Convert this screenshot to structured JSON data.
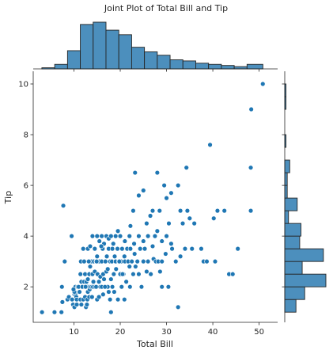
{
  "chart_data": {
    "type": "scatter",
    "title": "Joint Plot of Total Bill and Tip",
    "xlabel": "Total Bill",
    "ylabel": "Tip",
    "xlim": [
      1.2,
      54.0
    ],
    "ylim": [
      0.6,
      10.5
    ],
    "xticks": [
      "10",
      "20",
      "30",
      "40",
      "50"
    ],
    "yticks": [
      "2",
      "4",
      "6",
      "8",
      "10"
    ],
    "grid": false,
    "marker_color": "#1f77b4",
    "bar_color": "#4c8fbd",
    "points": [
      [
        3.1,
        1.0
      ],
      [
        5.8,
        1.0
      ],
      [
        7.3,
        1.0
      ],
      [
        7.5,
        1.4
      ],
      [
        8.6,
        1.5
      ],
      [
        8.9,
        1.6
      ],
      [
        9.6,
        1.5
      ],
      [
        9.8,
        1.3
      ],
      [
        10.1,
        1.7
      ],
      [
        10.3,
        1.7
      ],
      [
        10.5,
        1.6
      ],
      [
        10.6,
        1.5
      ],
      [
        10.3,
        2.0
      ],
      [
        10.1,
        1.8
      ],
      [
        9.9,
        1.9
      ],
      [
        9.6,
        1.5
      ],
      [
        10.1,
        1.2
      ],
      [
        10.6,
        1.3
      ],
      [
        11.2,
        1.8
      ],
      [
        11.4,
        1.5
      ],
      [
        11.6,
        1.3
      ],
      [
        12.0,
        1.5
      ],
      [
        12.4,
        1.6
      ],
      [
        12.6,
        1.2
      ],
      [
        12.8,
        1.3
      ],
      [
        12.9,
        1.5
      ],
      [
        13.0,
        1.8
      ],
      [
        13.0,
        2.0
      ],
      [
        13.3,
        1.6
      ],
      [
        13.4,
        1.9
      ],
      [
        13.5,
        2.0
      ],
      [
        13.8,
        2.0
      ],
      [
        13.9,
        1.6
      ],
      [
        14.1,
        2.0
      ],
      [
        14.5,
        2.0
      ],
      [
        14.8,
        2.0
      ],
      [
        15.0,
        1.5
      ],
      [
        15.4,
        1.6
      ],
      [
        15.7,
        2.0
      ],
      [
        16.0,
        2.0
      ],
      [
        16.3,
        1.7
      ],
      [
        16.9,
        2.0
      ],
      [
        17.3,
        2.0
      ],
      [
        17.5,
        1.8
      ],
      [
        17.8,
        1.5
      ],
      [
        18.3,
        2.0
      ],
      [
        18.7,
        1.8
      ],
      [
        19.5,
        1.5
      ],
      [
        20.3,
        2.0
      ],
      [
        20.9,
        1.5
      ],
      [
        22.1,
        2.0
      ],
      [
        10.8,
        2.0
      ],
      [
        11.0,
        2.0
      ],
      [
        11.4,
        2.5
      ],
      [
        11.6,
        2.2
      ],
      [
        11.8,
        2.0
      ],
      [
        12.2,
        2.2
      ],
      [
        12.4,
        2.5
      ],
      [
        12.5,
        2.0
      ],
      [
        12.7,
        2.2
      ],
      [
        13.0,
        2.3
      ],
      [
        13.3,
        2.5
      ],
      [
        13.5,
        2.8
      ],
      [
        13.8,
        3.0
      ],
      [
        14.0,
        2.5
      ],
      [
        14.2,
        2.2
      ],
      [
        14.3,
        3.0
      ],
      [
        14.5,
        2.6
      ],
      [
        14.8,
        3.0
      ],
      [
        15.0,
        3.2
      ],
      [
        15.1,
        2.5
      ],
      [
        15.4,
        2.2
      ],
      [
        15.5,
        3.0
      ],
      [
        15.7,
        2.4
      ],
      [
        16.0,
        3.0
      ],
      [
        16.2,
        3.5
      ],
      [
        16.3,
        2.5
      ],
      [
        16.5,
        2.3
      ],
      [
        16.8,
        3.0
      ],
      [
        17.0,
        2.6
      ],
      [
        17.1,
        3.2
      ],
      [
        17.3,
        2.7
      ],
      [
        17.5,
        3.5
      ],
      [
        17.8,
        3.0
      ],
      [
        18.0,
        2.3
      ],
      [
        18.2,
        3.0
      ],
      [
        18.3,
        3.5
      ],
      [
        18.6,
        2.5
      ],
      [
        18.8,
        3.2
      ],
      [
        19.0,
        3.0
      ],
      [
        19.1,
        2.7
      ],
      [
        19.4,
        3.5
      ],
      [
        19.7,
        3.0
      ],
      [
        20.0,
        2.5
      ],
      [
        20.2,
        3.0
      ],
      [
        20.4,
        3.5
      ],
      [
        20.7,
        2.5
      ],
      [
        20.9,
        3.2
      ],
      [
        21.0,
        3.0
      ],
      [
        21.3,
        2.2
      ],
      [
        21.5,
        3.5
      ],
      [
        21.7,
        3.0
      ],
      [
        22.0,
        2.8
      ],
      [
        22.2,
        3.5
      ],
      [
        22.5,
        3.0
      ],
      [
        22.8,
        2.5
      ],
      [
        23.1,
        3.3
      ],
      [
        23.3,
        2.8
      ],
      [
        23.7,
        3.0
      ],
      [
        24.0,
        2.5
      ],
      [
        24.3,
        3.5
      ],
      [
        24.6,
        2.0
      ],
      [
        25.0,
        3.0
      ],
      [
        25.3,
        3.5
      ],
      [
        25.7,
        2.6
      ],
      [
        26.0,
        3.0
      ],
      [
        26.6,
        2.5
      ],
      [
        27.2,
        3.1
      ],
      [
        27.7,
        3.0
      ],
      [
        28.2,
        3.0
      ],
      [
        28.6,
        2.6
      ],
      [
        29.0,
        3.0
      ],
      [
        29.8,
        3.3
      ],
      [
        30.4,
        2.0
      ],
      [
        31.2,
        3.5
      ],
      [
        32.0,
        3.0
      ],
      [
        33.0,
        3.2
      ],
      [
        34.0,
        3.5
      ],
      [
        13.0,
        3.5
      ],
      [
        13.5,
        3.6
      ],
      [
        14.0,
        4.0
      ],
      [
        14.5,
        3.5
      ],
      [
        15.0,
        4.0
      ],
      [
        15.5,
        3.8
      ],
      [
        16.0,
        4.0
      ],
      [
        16.5,
        3.7
      ],
      [
        17.0,
        4.0
      ],
      [
        17.5,
        3.9
      ],
      [
        18.0,
        4.0
      ],
      [
        18.5,
        3.7
      ],
      [
        19.0,
        4.0
      ],
      [
        19.5,
        4.2
      ],
      [
        20.0,
        4.0
      ],
      [
        21.0,
        3.8
      ],
      [
        22.0,
        4.0
      ],
      [
        23.0,
        3.7
      ],
      [
        24.0,
        4.0
      ],
      [
        25.0,
        3.8
      ],
      [
        26.0,
        4.0
      ],
      [
        27.0,
        3.6
      ],
      [
        27.5,
        4.0
      ],
      [
        28.0,
        4.2
      ],
      [
        29.0,
        3.8
      ],
      [
        30.0,
        4.0
      ],
      [
        31.0,
        3.7
      ],
      [
        8.0,
        3.0
      ],
      [
        9.5,
        4.0
      ],
      [
        7.4,
        2.0
      ],
      [
        7.7,
        5.2
      ],
      [
        11.5,
        3.0
      ],
      [
        12.0,
        3.5
      ],
      [
        12.2,
        3.0
      ],
      [
        13.2,
        3.0
      ],
      [
        14.9,
        3.0
      ],
      [
        15.9,
        3.6
      ],
      [
        19.8,
        3.0
      ],
      [
        16.7,
        2.0
      ],
      [
        18.0,
        1.0
      ],
      [
        20.5,
        2.5
      ],
      [
        22.2,
        4.4
      ],
      [
        22.8,
        5.0
      ],
      [
        23.2,
        6.5
      ],
      [
        24.0,
        5.6
      ],
      [
        25.0,
        5.8
      ],
      [
        25.7,
        4.5
      ],
      [
        26.5,
        4.8
      ],
      [
        27.0,
        5.0
      ],
      [
        28.0,
        6.5
      ],
      [
        28.5,
        5.0
      ],
      [
        29.5,
        6.0
      ],
      [
        30.0,
        5.5
      ],
      [
        30.5,
        4.5
      ],
      [
        31.0,
        5.7
      ],
      [
        32.5,
        6.0
      ],
      [
        33.0,
        5.0
      ],
      [
        33.5,
        4.5
      ],
      [
        34.3,
        6.7
      ],
      [
        34.5,
        5.0
      ],
      [
        35.0,
        4.7
      ],
      [
        35.5,
        3.5
      ],
      [
        36.0,
        4.5
      ],
      [
        37.5,
        3.5
      ],
      [
        38.0,
        3.0
      ],
      [
        38.7,
        3.0
      ],
      [
        39.4,
        7.6
      ],
      [
        40.2,
        4.7
      ],
      [
        40.5,
        3.0
      ],
      [
        41.0,
        5.0
      ],
      [
        42.5,
        5.0
      ],
      [
        43.5,
        2.5
      ],
      [
        44.3,
        2.5
      ],
      [
        45.4,
        3.5
      ],
      [
        48.2,
        5.0
      ],
      [
        48.2,
        6.7
      ],
      [
        48.3,
        9.0
      ],
      [
        50.8,
        10.0
      ],
      [
        32.5,
        1.2
      ],
      [
        29.0,
        2.0
      ]
    ],
    "x_hist": [
      {
        "start": 3.07,
        "end": 5.84,
        "count": 1
      },
      {
        "start": 5.84,
        "end": 8.61,
        "count": 4
      },
      {
        "start": 8.61,
        "end": 11.38,
        "count": 16
      },
      {
        "start": 11.38,
        "end": 14.15,
        "count": 39
      },
      {
        "start": 14.15,
        "end": 16.92,
        "count": 41
      },
      {
        "start": 16.92,
        "end": 19.69,
        "count": 34
      },
      {
        "start": 19.69,
        "end": 22.46,
        "count": 30
      },
      {
        "start": 22.46,
        "end": 25.23,
        "count": 19
      },
      {
        "start": 25.23,
        "end": 28.0,
        "count": 15
      },
      {
        "start": 28.0,
        "end": 30.77,
        "count": 12
      },
      {
        "start": 30.77,
        "end": 33.54,
        "count": 8
      },
      {
        "start": 33.54,
        "end": 36.31,
        "count": 7
      },
      {
        "start": 36.31,
        "end": 39.08,
        "count": 5
      },
      {
        "start": 39.08,
        "end": 41.85,
        "count": 4
      },
      {
        "start": 41.85,
        "end": 44.62,
        "count": 3
      },
      {
        "start": 44.62,
        "end": 47.39,
        "count": 2
      },
      {
        "start": 47.39,
        "end": 50.81,
        "count": 4
      }
    ],
    "y_hist": [
      {
        "start": 1.0,
        "end": 1.5,
        "count": 9
      },
      {
        "start": 1.5,
        "end": 2.0,
        "count": 16
      },
      {
        "start": 2.0,
        "end": 2.5,
        "count": 33
      },
      {
        "start": 2.5,
        "end": 3.0,
        "count": 14
      },
      {
        "start": 3.0,
        "end": 3.5,
        "count": 31
      },
      {
        "start": 3.5,
        "end": 4.0,
        "count": 12
      },
      {
        "start": 4.0,
        "end": 4.5,
        "count": 13
      },
      {
        "start": 4.5,
        "end": 5.0,
        "count": 3
      },
      {
        "start": 5.0,
        "end": 5.5,
        "count": 10
      },
      {
        "start": 5.5,
        "end": 6.0,
        "count": 2
      },
      {
        "start": 6.0,
        "end": 6.5,
        "count": 2
      },
      {
        "start": 6.5,
        "end": 7.0,
        "count": 4
      },
      {
        "start": 7.0,
        "end": 7.5,
        "count": 0
      },
      {
        "start": 7.5,
        "end": 8.0,
        "count": 1
      },
      {
        "start": 8.0,
        "end": 8.5,
        "count": 0
      },
      {
        "start": 8.5,
        "end": 9.0,
        "count": 0
      },
      {
        "start": 9.0,
        "end": 9.5,
        "count": 1
      },
      {
        "start": 9.5,
        "end": 10.0,
        "count": 1
      }
    ]
  }
}
